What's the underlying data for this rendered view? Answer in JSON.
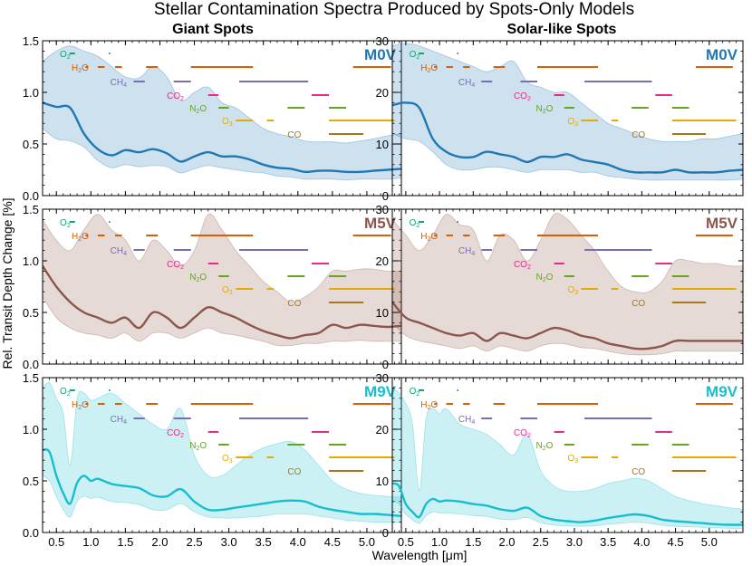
{
  "title": "Stellar Contamination Spectra Produced by Spots-Only Models",
  "xlabel": "Wavelength [μm]",
  "ylabel": "Rel. Transit Depth Change [%]",
  "columns": [
    "Giant Spots",
    "Solar-like Spots"
  ],
  "colors": {
    "M0V": "#1f77b4",
    "M5V": "#8c564b",
    "M9V": "#17becf",
    "O2": "#1a9e77",
    "H2O": "#d95f02",
    "CH4": "#7570b3",
    "CO2": "#e7298a",
    "N2O": "#66a61e",
    "O3": "#e6ab02",
    "CO": "#a6761d"
  },
  "molecules": [
    {
      "key": "O2",
      "base": "O",
      "sub": "2",
      "color_key": "O2",
      "label_x": 0.55,
      "level": 0,
      "segments": [
        [
          0.69,
          0.77
        ],
        [
          1.26,
          1.28
        ]
      ]
    },
    {
      "key": "H2O",
      "base": "H",
      "sub": "2",
      "rest": "O",
      "color_key": "H2O",
      "label_x": 0.72,
      "level": 1,
      "segments": [
        [
          0.92,
          0.96
        ],
        [
          1.1,
          1.2
        ],
        [
          1.35,
          1.45
        ],
        [
          1.8,
          1.97
        ],
        [
          2.45,
          3.35
        ],
        [
          4.8,
          5.35
        ]
      ]
    },
    {
      "key": "CH4",
      "base": "CH",
      "sub": "4",
      "color_key": "CH4",
      "label_x": 1.28,
      "level": 2,
      "segments": [
        [
          1.62,
          1.78
        ],
        [
          2.2,
          2.45
        ],
        [
          3.15,
          4.15
        ]
      ]
    },
    {
      "key": "CO2",
      "base": "CO",
      "sub": "2",
      "color_key": "CO2",
      "label_x": 2.1,
      "level": 3,
      "segments": [
        [
          2.7,
          2.85
        ],
        [
          4.2,
          4.45
        ]
      ]
    },
    {
      "key": "N2O",
      "base": "N",
      "sub": "2",
      "rest": "O",
      "color_key": "N2O",
      "label_x": 2.43,
      "level": 4,
      "segments": [
        [
          2.85,
          3.0
        ],
        [
          3.85,
          4.1
        ],
        [
          4.45,
          4.7
        ]
      ]
    },
    {
      "key": "O3",
      "base": "O",
      "sub": "3",
      "color_key": "O3",
      "label_x": 2.9,
      "level": 5,
      "segments": [
        [
          3.1,
          3.35
        ],
        [
          3.55,
          3.65
        ],
        [
          4.45,
          5.4
        ]
      ]
    },
    {
      "key": "CO",
      "base": "CO",
      "color_key": "CO",
      "label_x": 3.85,
      "level": 6,
      "segments": [
        [
          4.45,
          4.95
        ]
      ]
    }
  ],
  "chart_data": [
    {
      "type": "area",
      "row": 0,
      "col": 0,
      "star": "M0V",
      "color_key": "M0V",
      "xlim": [
        0.3,
        5.5
      ],
      "ylim": [
        0,
        1.5
      ],
      "yticks": [
        0.0,
        0.5,
        1.0,
        1.5
      ],
      "x": [
        0.3,
        0.5,
        0.7,
        0.9,
        1.1,
        1.3,
        1.5,
        1.7,
        1.9,
        2.1,
        2.3,
        2.5,
        2.7,
        2.9,
        3.1,
        3.3,
        3.5,
        3.7,
        3.9,
        4.1,
        4.3,
        4.5,
        4.7,
        4.9,
        5.1,
        5.3,
        5.5
      ],
      "y": [
        0.9,
        0.86,
        0.85,
        0.6,
        0.45,
        0.39,
        0.44,
        0.42,
        0.45,
        0.41,
        0.33,
        0.38,
        0.42,
        0.38,
        0.38,
        0.35,
        0.3,
        0.27,
        0.26,
        0.23,
        0.24,
        0.24,
        0.23,
        0.23,
        0.24,
        0.25,
        0.26
      ],
      "lower": [
        0.65,
        0.55,
        0.53,
        0.47,
        0.34,
        0.27,
        0.3,
        0.28,
        0.29,
        0.28,
        0.22,
        0.26,
        0.29,
        0.27,
        0.25,
        0.23,
        0.22,
        0.19,
        0.18,
        0.16,
        0.16,
        0.16,
        0.15,
        0.16,
        0.16,
        0.16,
        0.17
      ],
      "upper": [
        1.3,
        1.4,
        1.45,
        1.4,
        1.35,
        1.25,
        1.15,
        1.14,
        1.25,
        1.15,
        0.92,
        1.0,
        1.05,
        0.9,
        0.85,
        0.75,
        0.65,
        0.6,
        0.57,
        0.53,
        0.52,
        0.52,
        0.51,
        0.53,
        0.55,
        0.58,
        0.6
      ]
    },
    {
      "type": "area",
      "row": 0,
      "col": 1,
      "star": "M0V",
      "color_key": "M0V",
      "xlim": [
        0.3,
        5.5
      ],
      "ylim": [
        0,
        30
      ],
      "yticks": [
        0,
        10,
        20,
        30
      ],
      "x": [
        0.3,
        0.5,
        0.7,
        0.9,
        1.1,
        1.3,
        1.5,
        1.7,
        1.9,
        2.1,
        2.3,
        2.5,
        2.7,
        2.9,
        3.1,
        3.3,
        3.5,
        3.7,
        3.9,
        4.1,
        4.3,
        4.5,
        4.7,
        4.9,
        5.1,
        5.3,
        5.5
      ],
      "y": [
        17.5,
        18,
        17,
        11,
        8.5,
        7.5,
        7.5,
        8.5,
        8,
        7.5,
        6.5,
        7.5,
        7.5,
        8,
        7,
        6.5,
        6,
        5,
        4.5,
        4.5,
        4.5,
        5,
        4.5,
        4.5,
        4.5,
        4.8,
        5
      ],
      "lower": [
        12,
        11,
        10.5,
        8.5,
        6,
        5,
        5,
        5.5,
        5.5,
        5,
        4.5,
        5,
        5,
        5,
        4.5,
        4.5,
        3.8,
        3.5,
        3.2,
        3,
        3,
        3,
        3,
        3,
        3,
        3,
        3.2
      ],
      "upper": [
        29,
        29.5,
        29,
        28,
        27,
        26,
        25,
        24,
        25,
        26,
        22,
        21,
        20,
        20,
        18,
        16,
        14,
        13,
        12,
        11,
        10.5,
        10.5,
        10.5,
        11,
        11,
        11.5,
        12
      ]
    },
    {
      "type": "area",
      "row": 1,
      "col": 0,
      "star": "M5V",
      "color_key": "M5V",
      "xlim": [
        0.3,
        5.5
      ],
      "ylim": [
        0,
        1.5
      ],
      "yticks": [
        0.0,
        0.5,
        1.0,
        1.5
      ],
      "x": [
        0.3,
        0.5,
        0.7,
        0.9,
        1.1,
        1.3,
        1.5,
        1.7,
        1.9,
        2.1,
        2.3,
        2.5,
        2.7,
        2.9,
        3.1,
        3.3,
        3.5,
        3.7,
        3.9,
        4.1,
        4.3,
        4.5,
        4.7,
        4.9,
        5.1,
        5.3,
        5.5
      ],
      "y": [
        0.95,
        0.75,
        0.6,
        0.5,
        0.45,
        0.4,
        0.45,
        0.35,
        0.5,
        0.45,
        0.35,
        0.45,
        0.55,
        0.5,
        0.45,
        0.38,
        0.32,
        0.28,
        0.25,
        0.28,
        0.3,
        0.38,
        0.35,
        0.38,
        0.37,
        0.36,
        0.37
      ],
      "lower": [
        0.65,
        0.45,
        0.35,
        0.3,
        0.28,
        0.25,
        0.3,
        0.22,
        0.3,
        0.3,
        0.25,
        0.3,
        0.35,
        0.3,
        0.28,
        0.25,
        0.22,
        0.18,
        0.18,
        0.2,
        0.2,
        0.22,
        0.22,
        0.23,
        0.22,
        0.22,
        0.22
      ],
      "upper": [
        1.4,
        1.2,
        1.1,
        1.3,
        1.45,
        1.3,
        1.2,
        1.0,
        1.2,
        1.1,
        0.95,
        1.1,
        1.45,
        1.3,
        1.1,
        0.95,
        0.8,
        0.7,
        0.6,
        0.65,
        0.75,
        0.9,
        0.9,
        0.92,
        0.92,
        0.9,
        0.9
      ]
    },
    {
      "type": "area",
      "row": 1,
      "col": 1,
      "star": "M5V",
      "color_key": "M5V",
      "xlim": [
        0.3,
        5.5
      ],
      "ylim": [
        0,
        30
      ],
      "yticks": [
        0,
        10,
        20,
        30
      ],
      "x": [
        0.3,
        0.5,
        0.7,
        0.9,
        1.1,
        1.3,
        1.5,
        1.7,
        1.9,
        2.1,
        2.3,
        2.5,
        2.7,
        2.9,
        3.1,
        3.3,
        3.5,
        3.7,
        3.9,
        4.1,
        4.3,
        4.5,
        4.7,
        4.9,
        5.1,
        5.3,
        5.5
      ],
      "y": [
        12,
        9,
        8,
        7,
        6,
        5.5,
        6,
        4.5,
        6,
        5.5,
        5,
        6,
        7,
        6.5,
        5.5,
        5,
        4,
        3.5,
        3,
        3,
        3.5,
        4.5,
        4.5,
        4.5,
        4.5,
        4.5,
        4.5
      ],
      "lower": [
        8,
        5.5,
        4.5,
        4,
        3.5,
        3,
        3.5,
        2.5,
        3.5,
        3,
        2.5,
        3.5,
        4,
        3.8,
        3.2,
        3,
        2.5,
        2,
        1.8,
        1.8,
        2,
        2.5,
        2.5,
        2.5,
        2.5,
        2.5,
        2.5
      ],
      "upper": [
        28,
        25,
        22,
        25,
        29,
        27,
        26,
        20,
        25,
        24,
        20,
        24,
        29,
        28,
        25,
        22,
        18,
        15,
        14,
        14,
        16,
        20,
        20,
        19.5,
        19.5,
        19,
        19
      ]
    },
    {
      "type": "area",
      "row": 2,
      "col": 0,
      "star": "M9V",
      "color_key": "M9V",
      "xlim": [
        0.3,
        5.5
      ],
      "ylim": [
        0,
        1.5
      ],
      "yticks": [
        0.0,
        0.5,
        1.0,
        1.5
      ],
      "x": [
        0.3,
        0.4,
        0.5,
        0.6,
        0.7,
        0.8,
        0.9,
        1.0,
        1.1,
        1.3,
        1.5,
        1.7,
        1.9,
        2.1,
        2.3,
        2.5,
        2.7,
        2.9,
        3.1,
        3.3,
        3.5,
        3.7,
        3.9,
        4.1,
        4.3,
        4.5,
        4.7,
        4.9,
        5.1,
        5.3,
        5.5
      ],
      "y": [
        0.8,
        0.78,
        0.55,
        0.38,
        0.28,
        0.48,
        0.55,
        0.5,
        0.52,
        0.47,
        0.45,
        0.43,
        0.36,
        0.35,
        0.42,
        0.3,
        0.22,
        0.22,
        0.24,
        0.26,
        0.28,
        0.3,
        0.31,
        0.3,
        0.25,
        0.22,
        0.2,
        0.18,
        0.18,
        0.17,
        0.16
      ],
      "lower": [
        0.55,
        0.5,
        0.35,
        0.22,
        0.15,
        0.3,
        0.35,
        0.33,
        0.34,
        0.3,
        0.29,
        0.27,
        0.22,
        0.22,
        0.28,
        0.2,
        0.15,
        0.14,
        0.14,
        0.15,
        0.16,
        0.18,
        0.18,
        0.18,
        0.16,
        0.14,
        0.12,
        0.11,
        0.1,
        0.1,
        0.1
      ],
      "upper": [
        1.4,
        1.45,
        1.3,
        1.15,
        0.65,
        1.3,
        1.35,
        1.28,
        1.3,
        1.35,
        1.25,
        1.15,
        1.05,
        1.0,
        1.2,
        0.75,
        0.55,
        0.55,
        0.65,
        0.75,
        0.82,
        0.86,
        0.88,
        0.8,
        0.65,
        0.5,
        0.42,
        0.38,
        0.36,
        0.35,
        0.34
      ]
    },
    {
      "type": "area",
      "row": 2,
      "col": 1,
      "star": "M9V",
      "color_key": "M9V",
      "xlim": [
        0.3,
        5.5
      ],
      "ylim": [
        0,
        30
      ],
      "yticks": [
        0,
        10,
        20,
        30
      ],
      "x": [
        0.3,
        0.4,
        0.5,
        0.6,
        0.7,
        0.8,
        0.9,
        1.0,
        1.1,
        1.3,
        1.5,
        1.7,
        1.9,
        2.1,
        2.3,
        2.5,
        2.7,
        2.9,
        3.1,
        3.3,
        3.5,
        3.7,
        3.9,
        4.1,
        4.3,
        4.5,
        4.7,
        4.9,
        5.1,
        5.3,
        5.5
      ],
      "y": [
        9.5,
        9,
        5.5,
        4,
        3,
        5.5,
        6.5,
        6,
        6.2,
        6,
        5.5,
        5.2,
        4.5,
        4.2,
        4.8,
        3.2,
        2.5,
        2.2,
        2,
        2.3,
        2.8,
        3.2,
        3.5,
        3.2,
        2.5,
        2.2,
        2,
        1.8,
        1.6,
        1.5,
        1.5
      ],
      "lower": [
        6,
        5.5,
        3.5,
        2.5,
        1.8,
        3.2,
        4,
        3.8,
        3.8,
        3.6,
        3.3,
        3.1,
        2.6,
        2.5,
        2.9,
        1.9,
        1.4,
        1.3,
        1.2,
        1.3,
        1.6,
        1.8,
        2,
        1.8,
        1.4,
        1.2,
        1.1,
        1,
        0.9,
        0.8,
        0.8
      ],
      "upper": [
        28,
        27,
        25,
        21,
        8,
        22,
        24,
        23,
        24,
        21,
        20,
        19,
        17,
        15,
        19,
        12,
        9,
        8,
        8,
        8.5,
        9.5,
        10,
        10.5,
        10,
        8.5,
        7,
        6.2,
        5.6,
        5.2,
        4.8,
        4.5
      ]
    }
  ],
  "xticks": [
    0.5,
    1.0,
    1.5,
    2.0,
    2.5,
    3.0,
    3.5,
    4.0,
    4.5,
    5.0
  ],
  "xtick_labels": [
    "0.5",
    "1.0",
    "1.5",
    "2.0",
    "2.5",
    "3.0",
    "3.5",
    "4.0",
    "4.5",
    "5.0"
  ]
}
